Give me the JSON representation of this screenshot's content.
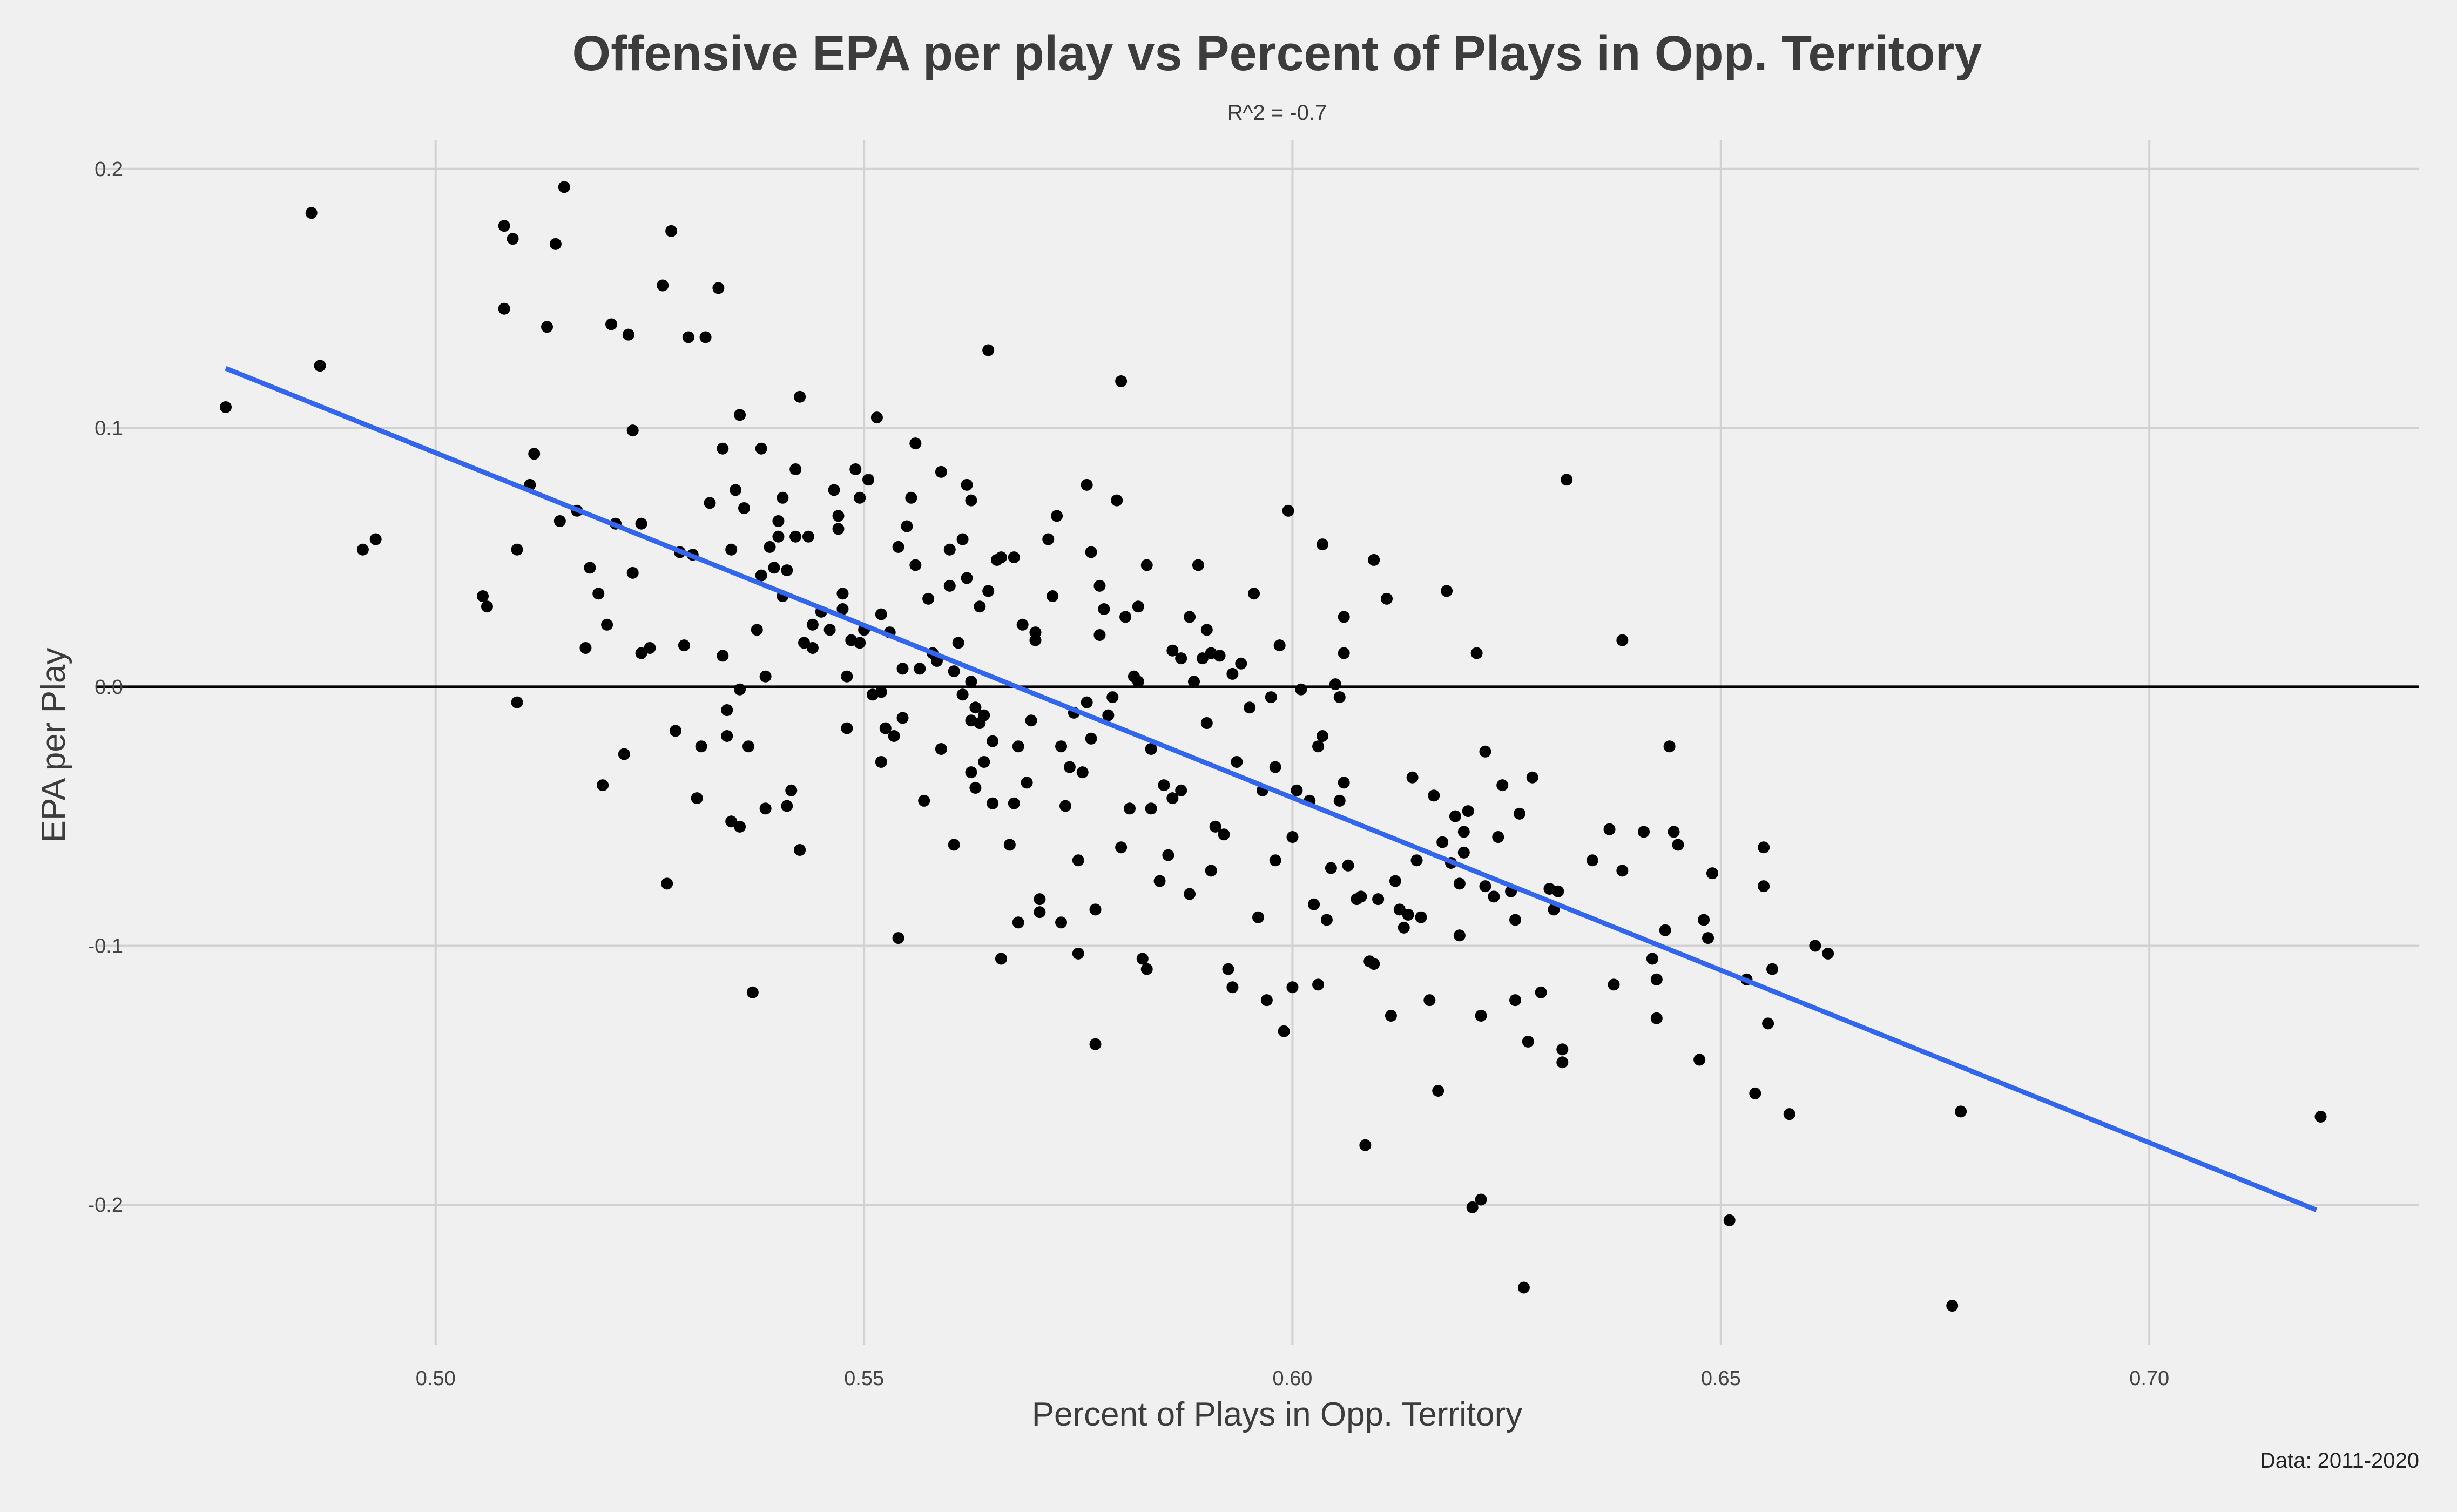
{
  "chart_data": {
    "type": "scatter",
    "title": "Offensive EPA per play vs Percent of Plays in Opp. Territory",
    "subtitle": "R^2 = -0.7",
    "xlabel": "Percent of Plays in Opp. Territory",
    "ylabel": "EPA per Play",
    "caption": "Data: 2011-2020",
    "xlim": [
      0.4605,
      0.7315
    ],
    "ylim": [
      -0.254,
      0.211
    ],
    "x_ticks": [
      0.5,
      0.55,
      0.6,
      0.65,
      0.7
    ],
    "x_tick_labels": [
      "0.50",
      "0.55",
      "0.60",
      "0.65",
      "0.70"
    ],
    "y_ticks": [
      0.2,
      0.1,
      0.0,
      -0.1,
      -0.2
    ],
    "y_tick_labels": [
      "0.2",
      "0.1",
      "0.0",
      "-0.1",
      "-0.2"
    ],
    "grid": true,
    "colors": {
      "points": "#000000",
      "trend": "#3366ee",
      "zero_line": "#000000",
      "grid": "#d2d2d2",
      "background": "#f0f0f0"
    },
    "hline": 0.0,
    "trend_line": {
      "x": [
        0.4755,
        0.7195
      ],
      "y": [
        0.123,
        -0.202
      ]
    },
    "points": [
      [
        0.4755,
        0.108
      ],
      [
        0.4855,
        0.183
      ],
      [
        0.4865,
        0.124
      ],
      [
        0.4915,
        0.053
      ],
      [
        0.493,
        0.057
      ],
      [
        0.5055,
        0.035
      ],
      [
        0.506,
        0.031
      ],
      [
        0.508,
        0.146
      ],
      [
        0.508,
        0.178
      ],
      [
        0.509,
        0.173
      ],
      [
        0.5095,
        0.053
      ],
      [
        0.5095,
        -0.006
      ],
      [
        0.511,
        0.078
      ],
      [
        0.5115,
        0.09
      ],
      [
        0.513,
        0.139
      ],
      [
        0.514,
        0.171
      ],
      [
        0.5145,
        0.064
      ],
      [
        0.515,
        0.193
      ],
      [
        0.5165,
        0.068
      ],
      [
        0.5175,
        0.015
      ],
      [
        0.518,
        0.046
      ],
      [
        0.519,
        0.036
      ],
      [
        0.5195,
        -0.038
      ],
      [
        0.52,
        0.024
      ],
      [
        0.5205,
        0.14
      ],
      [
        0.521,
        0.063
      ],
      [
        0.522,
        -0.026
      ],
      [
        0.5225,
        0.136
      ],
      [
        0.523,
        0.099
      ],
      [
        0.523,
        0.044
      ],
      [
        0.524,
        0.063
      ],
      [
        0.524,
        0.013
      ],
      [
        0.525,
        0.015
      ],
      [
        0.5265,
        0.155
      ],
      [
        0.527,
        -0.076
      ],
      [
        0.5275,
        0.176
      ],
      [
        0.528,
        -0.017
      ],
      [
        0.5285,
        0.052
      ],
      [
        0.529,
        0.016
      ],
      [
        0.5295,
        0.135
      ],
      [
        0.53,
        0.051
      ],
      [
        0.5305,
        -0.043
      ],
      [
        0.531,
        -0.023
      ],
      [
        0.5315,
        0.135
      ],
      [
        0.532,
        0.071
      ],
      [
        0.533,
        0.154
      ],
      [
        0.5335,
        0.092
      ],
      [
        0.5335,
        0.012
      ],
      [
        0.534,
        -0.009
      ],
      [
        0.534,
        -0.019
      ],
      [
        0.5345,
        0.053
      ],
      [
        0.5345,
        -0.052
      ],
      [
        0.535,
        0.076
      ],
      [
        0.5355,
        0.105
      ],
      [
        0.5355,
        -0.001
      ],
      [
        0.5355,
        -0.054
      ],
      [
        0.536,
        0.069
      ],
      [
        0.5365,
        -0.023
      ],
      [
        0.537,
        -0.118
      ],
      [
        0.5375,
        0.022
      ],
      [
        0.538,
        0.043
      ],
      [
        0.538,
        0.092
      ],
      [
        0.5385,
        0.004
      ],
      [
        0.5385,
        -0.047
      ],
      [
        0.539,
        0.054
      ],
      [
        0.5395,
        0.046
      ],
      [
        0.54,
        0.058
      ],
      [
        0.54,
        0.064
      ],
      [
        0.5405,
        0.035
      ],
      [
        0.5405,
        0.073
      ],
      [
        0.541,
        0.045
      ],
      [
        0.541,
        -0.046
      ],
      [
        0.5415,
        -0.04
      ],
      [
        0.542,
        0.084
      ],
      [
        0.542,
        0.058
      ],
      [
        0.5425,
        0.112
      ],
      [
        0.5425,
        -0.063
      ],
      [
        0.543,
        0.017
      ],
      [
        0.5435,
        0.058
      ],
      [
        0.544,
        0.024
      ],
      [
        0.544,
        0.015
      ],
      [
        0.545,
        0.029
      ],
      [
        0.546,
        0.022
      ],
      [
        0.5465,
        0.076
      ],
      [
        0.547,
        0.066
      ],
      [
        0.547,
        0.061
      ],
      [
        0.5475,
        0.036
      ],
      [
        0.5475,
        0.03
      ],
      [
        0.548,
        -0.016
      ],
      [
        0.548,
        0.004
      ],
      [
        0.5485,
        0.018
      ],
      [
        0.549,
        0.084
      ],
      [
        0.5495,
        0.017
      ],
      [
        0.5495,
        0.073
      ],
      [
        0.55,
        0.022
      ],
      [
        0.5505,
        0.08
      ],
      [
        0.551,
        -0.003
      ],
      [
        0.5515,
        0.104
      ],
      [
        0.552,
        0.028
      ],
      [
        0.552,
        -0.002
      ],
      [
        0.552,
        -0.029
      ],
      [
        0.5525,
        -0.016
      ],
      [
        0.553,
        0.021
      ],
      [
        0.5535,
        -0.019
      ],
      [
        0.554,
        -0.097
      ],
      [
        0.554,
        0.054
      ],
      [
        0.5545,
        0.007
      ],
      [
        0.5545,
        -0.012
      ],
      [
        0.555,
        0.062
      ],
      [
        0.5555,
        0.073
      ],
      [
        0.556,
        0.094
      ],
      [
        0.556,
        0.047
      ],
      [
        0.5565,
        0.007
      ],
      [
        0.557,
        -0.044
      ],
      [
        0.5575,
        0.034
      ],
      [
        0.558,
        0.013
      ],
      [
        0.5585,
        0.01
      ],
      [
        0.559,
        0.083
      ],
      [
        0.559,
        -0.024
      ],
      [
        0.56,
        0.039
      ],
      [
        0.56,
        0.053
      ],
      [
        0.5605,
        0.006
      ],
      [
        0.5605,
        -0.061
      ],
      [
        0.561,
        0.017
      ],
      [
        0.5615,
        0.057
      ],
      [
        0.5615,
        -0.003
      ],
      [
        0.562,
        0.042
      ],
      [
        0.562,
        0.078
      ],
      [
        0.5625,
        0.072
      ],
      [
        0.5625,
        0.002
      ],
      [
        0.5625,
        -0.013
      ],
      [
        0.5625,
        -0.033
      ],
      [
        0.563,
        -0.008
      ],
      [
        0.563,
        -0.039
      ],
      [
        0.5635,
        0.031
      ],
      [
        0.5635,
        -0.014
      ],
      [
        0.564,
        -0.029
      ],
      [
        0.564,
        -0.011
      ],
      [
        0.5645,
        0.037
      ],
      [
        0.5645,
        0.13
      ],
      [
        0.565,
        -0.021
      ],
      [
        0.565,
        -0.045
      ],
      [
        0.5655,
        0.049
      ],
      [
        0.566,
        0.05
      ],
      [
        0.566,
        -0.105
      ],
      [
        0.567,
        -0.061
      ],
      [
        0.5675,
        -0.045
      ],
      [
        0.5675,
        0.05
      ],
      [
        0.568,
        -0.091
      ],
      [
        0.568,
        -0.023
      ],
      [
        0.5685,
        0.024
      ],
      [
        0.569,
        -0.037
      ],
      [
        0.5695,
        -0.013
      ],
      [
        0.57,
        0.021
      ],
      [
        0.57,
        0.018
      ],
      [
        0.5705,
        -0.082
      ],
      [
        0.5705,
        -0.087
      ],
      [
        0.5715,
        0.057
      ],
      [
        0.572,
        0.035
      ],
      [
        0.5725,
        0.066
      ],
      [
        0.573,
        -0.023
      ],
      [
        0.573,
        -0.091
      ],
      [
        0.5735,
        -0.046
      ],
      [
        0.574,
        -0.031
      ],
      [
        0.5745,
        -0.01
      ],
      [
        0.575,
        -0.103
      ],
      [
        0.575,
        -0.067
      ],
      [
        0.5755,
        -0.033
      ],
      [
        0.576,
        -0.006
      ],
      [
        0.576,
        0.078
      ],
      [
        0.5765,
        0.052
      ],
      [
        0.5765,
        -0.02
      ],
      [
        0.577,
        -0.086
      ],
      [
        0.577,
        -0.138
      ],
      [
        0.5775,
        0.039
      ],
      [
        0.5775,
        0.02
      ],
      [
        0.578,
        0.03
      ],
      [
        0.5785,
        -0.011
      ],
      [
        0.579,
        -0.004
      ],
      [
        0.5795,
        0.072
      ],
      [
        0.58,
        0.118
      ],
      [
        0.58,
        -0.062
      ],
      [
        0.5805,
        0.027
      ],
      [
        0.581,
        -0.047
      ],
      [
        0.5815,
        0.004
      ],
      [
        0.582,
        0.031
      ],
      [
        0.582,
        0.002
      ],
      [
        0.5825,
        -0.105
      ],
      [
        0.583,
        -0.109
      ],
      [
        0.583,
        0.047
      ],
      [
        0.5835,
        -0.024
      ],
      [
        0.5835,
        -0.047
      ],
      [
        0.5845,
        -0.075
      ],
      [
        0.585,
        -0.038
      ],
      [
        0.5855,
        -0.065
      ],
      [
        0.586,
        0.014
      ],
      [
        0.586,
        -0.043
      ],
      [
        0.587,
        -0.04
      ],
      [
        0.587,
        0.011
      ],
      [
        0.588,
        0.027
      ],
      [
        0.588,
        -0.08
      ],
      [
        0.5885,
        0.002
      ],
      [
        0.589,
        0.047
      ],
      [
        0.5895,
        0.011
      ],
      [
        0.59,
        -0.014
      ],
      [
        0.59,
        0.022
      ],
      [
        0.5905,
        0.013
      ],
      [
        0.5905,
        -0.071
      ],
      [
        0.591,
        -0.054
      ],
      [
        0.5915,
        0.012
      ],
      [
        0.592,
        -0.057
      ],
      [
        0.5925,
        -0.109
      ],
      [
        0.593,
        -0.116
      ],
      [
        0.593,
        0.005
      ],
      [
        0.5935,
        -0.029
      ],
      [
        0.594,
        0.009
      ],
      [
        0.595,
        -0.008
      ],
      [
        0.5955,
        0.036
      ],
      [
        0.596,
        -0.089
      ],
      [
        0.5965,
        -0.04
      ],
      [
        0.597,
        -0.121
      ],
      [
        0.5975,
        -0.004
      ],
      [
        0.598,
        -0.067
      ],
      [
        0.598,
        -0.031
      ],
      [
        0.5985,
        0.016
      ],
      [
        0.599,
        -0.133
      ],
      [
        0.5995,
        0.068
      ],
      [
        0.6,
        -0.058
      ],
      [
        0.6,
        -0.116
      ],
      [
        0.6005,
        -0.04
      ],
      [
        0.601,
        -0.001
      ],
      [
        0.602,
        -0.044
      ],
      [
        0.6025,
        -0.084
      ],
      [
        0.603,
        -0.115
      ],
      [
        0.603,
        -0.023
      ],
      [
        0.6035,
        0.055
      ],
      [
        0.6035,
        -0.019
      ],
      [
        0.604,
        -0.09
      ],
      [
        0.6045,
        -0.07
      ],
      [
        0.605,
        0.001
      ],
      [
        0.6055,
        -0.044
      ],
      [
        0.6055,
        -0.004
      ],
      [
        0.606,
        0.013
      ],
      [
        0.606,
        0.027
      ],
      [
        0.606,
        -0.037
      ],
      [
        0.6065,
        -0.069
      ],
      [
        0.6075,
        -0.082
      ],
      [
        0.608,
        -0.081
      ],
      [
        0.6085,
        -0.177
      ],
      [
        0.609,
        -0.106
      ],
      [
        0.6095,
        0.049
      ],
      [
        0.6095,
        -0.107
      ],
      [
        0.61,
        -0.082
      ],
      [
        0.611,
        0.034
      ],
      [
        0.6115,
        -0.127
      ],
      [
        0.612,
        -0.075
      ],
      [
        0.6125,
        -0.086
      ],
      [
        0.613,
        -0.093
      ],
      [
        0.6135,
        -0.088
      ],
      [
        0.614,
        -0.035
      ],
      [
        0.6145,
        -0.067
      ],
      [
        0.615,
        -0.089
      ],
      [
        0.616,
        -0.121
      ],
      [
        0.6165,
        -0.042
      ],
      [
        0.617,
        -0.156
      ],
      [
        0.6175,
        -0.06
      ],
      [
        0.618,
        0.037
      ],
      [
        0.6185,
        -0.068
      ],
      [
        0.619,
        -0.05
      ],
      [
        0.6195,
        -0.076
      ],
      [
        0.6195,
        -0.096
      ],
      [
        0.62,
        -0.064
      ],
      [
        0.62,
        -0.056
      ],
      [
        0.6205,
        -0.048
      ],
      [
        0.621,
        -0.201
      ],
      [
        0.6215,
        0.013
      ],
      [
        0.622,
        -0.198
      ],
      [
        0.622,
        -0.127
      ],
      [
        0.6225,
        -0.077
      ],
      [
        0.6225,
        -0.025
      ],
      [
        0.6235,
        -0.081
      ],
      [
        0.624,
        -0.058
      ],
      [
        0.6245,
        -0.038
      ],
      [
        0.6255,
        -0.079
      ],
      [
        0.626,
        -0.121
      ],
      [
        0.626,
        -0.09
      ],
      [
        0.6265,
        -0.049
      ],
      [
        0.627,
        -0.232
      ],
      [
        0.6275,
        -0.137
      ],
      [
        0.628,
        -0.035
      ],
      [
        0.629,
        -0.118
      ],
      [
        0.63,
        -0.078
      ],
      [
        0.6305,
        -0.086
      ],
      [
        0.631,
        -0.079
      ],
      [
        0.6315,
        -0.14
      ],
      [
        0.6315,
        -0.145
      ],
      [
        0.632,
        0.08
      ],
      [
        0.635,
        -0.067
      ],
      [
        0.637,
        -0.055
      ],
      [
        0.6375,
        -0.115
      ],
      [
        0.6385,
        0.018
      ],
      [
        0.6385,
        -0.071
      ],
      [
        0.641,
        -0.056
      ],
      [
        0.642,
        -0.105
      ],
      [
        0.6425,
        -0.113
      ],
      [
        0.6425,
        -0.128
      ],
      [
        0.6435,
        -0.094
      ],
      [
        0.644,
        -0.023
      ],
      [
        0.6445,
        -0.056
      ],
      [
        0.645,
        -0.061
      ],
      [
        0.6475,
        -0.144
      ],
      [
        0.648,
        -0.09
      ],
      [
        0.6485,
        -0.097
      ],
      [
        0.649,
        -0.072
      ],
      [
        0.651,
        -0.206
      ],
      [
        0.653,
        -0.113
      ],
      [
        0.654,
        -0.157
      ],
      [
        0.655,
        -0.062
      ],
      [
        0.655,
        -0.077
      ],
      [
        0.6555,
        -0.13
      ],
      [
        0.656,
        -0.109
      ],
      [
        0.658,
        -0.165
      ],
      [
        0.661,
        -0.1
      ],
      [
        0.6625,
        -0.103
      ],
      [
        0.677,
        -0.239
      ],
      [
        0.678,
        -0.164
      ],
      [
        0.72,
        -0.166
      ]
    ]
  }
}
